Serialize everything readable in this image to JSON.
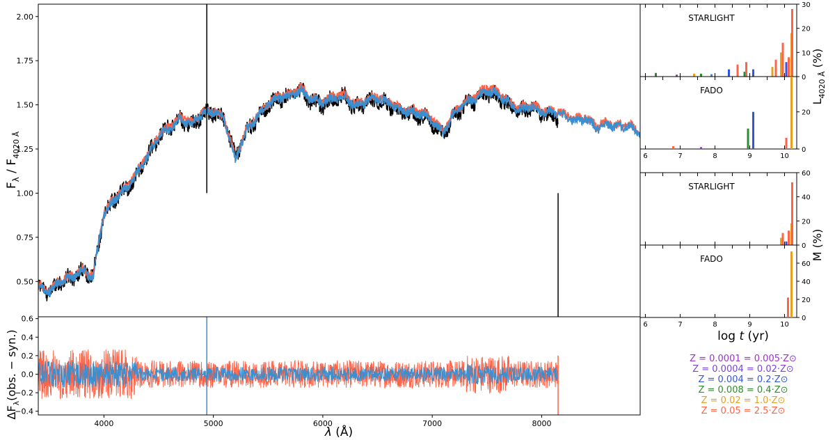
{
  "chart_data": [
    {
      "type": "line",
      "panel": "spectrum",
      "ylabel_main": "F",
      "ylabel_sub_lambda": "λ",
      "ylabel_sep": " / F",
      "ylabel_sub_ref": "4020 Å",
      "xlim": [
        3400,
        8900
      ],
      "ylim": [
        0.3,
        2.07
      ],
      "yticks": [
        "0.50",
        "0.75",
        "1.00",
        "1.25",
        "1.50",
        "1.75",
        "2.00"
      ],
      "ytick_values": [
        0.5,
        0.75,
        1.0,
        1.25,
        1.5,
        1.75,
        2.0
      ],
      "series": [
        {
          "role": "observed",
          "color": "#000000",
          "x": [
            3400,
            3500,
            3600,
            3700,
            3800,
            3900,
            3950,
            4000,
            4100,
            4200,
            4300,
            4400,
            4500,
            4600,
            4700,
            4800,
            4900,
            5000,
            5100,
            5200,
            5300,
            5400,
            5500,
            5600,
            5700,
            5800,
            5900,
            6000,
            6100,
            6200,
            6300,
            6400,
            6500,
            6600,
            6700,
            6800,
            6900,
            7000,
            7100,
            7200,
            7300,
            7400,
            7500,
            7600,
            7700,
            7800,
            7900,
            8000,
            8100,
            8150
          ],
          "y": [
            0.47,
            0.44,
            0.5,
            0.52,
            0.56,
            0.53,
            0.7,
            0.88,
            0.97,
            1.02,
            1.1,
            1.21,
            1.32,
            1.38,
            1.42,
            1.38,
            1.45,
            1.46,
            1.42,
            1.2,
            1.35,
            1.42,
            1.5,
            1.54,
            1.55,
            1.58,
            1.52,
            1.5,
            1.53,
            1.55,
            1.48,
            1.52,
            1.53,
            1.5,
            1.46,
            1.45,
            1.44,
            1.4,
            1.33,
            1.44,
            1.5,
            1.53,
            1.57,
            1.55,
            1.5,
            1.46,
            1.48,
            1.45,
            1.44,
            1.43
          ]
        },
        {
          "role": "STARLIGHT synthetic",
          "color": "#ff6347",
          "x": [
            3400,
            3500,
            3600,
            3700,
            3800,
            3900,
            3950,
            4000,
            4100,
            4200,
            4300,
            4400,
            4500,
            4600,
            4700,
            4800,
            4900,
            5000,
            5100,
            5200,
            5300,
            5400,
            5500,
            5600,
            5700,
            5800,
            5900,
            6000,
            6100,
            6200,
            6300,
            6400,
            6500,
            6600,
            6700,
            6800,
            6900,
            7000,
            7100,
            7200,
            7300,
            7400,
            7500,
            7600,
            7700,
            7800,
            7900,
            8000,
            8100,
            8200,
            8300,
            8400,
            8500,
            8600,
            8700,
            8800,
            8900
          ],
          "y": [
            0.48,
            0.45,
            0.51,
            0.53,
            0.57,
            0.53,
            0.72,
            0.89,
            0.98,
            1.03,
            1.12,
            1.22,
            1.33,
            1.38,
            1.43,
            1.4,
            1.46,
            1.47,
            1.43,
            1.2,
            1.36,
            1.44,
            1.51,
            1.55,
            1.56,
            1.6,
            1.54,
            1.52,
            1.55,
            1.56,
            1.5,
            1.53,
            1.55,
            1.52,
            1.48,
            1.47,
            1.46,
            1.42,
            1.35,
            1.46,
            1.52,
            1.55,
            1.6,
            1.57,
            1.52,
            1.48,
            1.5,
            1.47,
            1.47,
            1.45,
            1.42,
            1.43,
            1.38,
            1.4,
            1.38,
            1.39,
            1.34
          ]
        },
        {
          "role": "FADO synthetic",
          "color": "#3a8fd0",
          "x": [
            3400,
            3500,
            3600,
            3700,
            3800,
            3900,
            3950,
            4000,
            4100,
            4200,
            4300,
            4400,
            4500,
            4600,
            4700,
            4800,
            4900,
            5000,
            5100,
            5200,
            5300,
            5400,
            5500,
            5600,
            5700,
            5800,
            5900,
            6000,
            6100,
            6200,
            6300,
            6400,
            6500,
            6600,
            6700,
            6800,
            6900,
            7000,
            7100,
            7200,
            7300,
            7400,
            7500,
            7600,
            7700,
            7800,
            7900,
            8000,
            8100,
            8200,
            8300,
            8400,
            8500,
            8600,
            8700,
            8800,
            8900
          ],
          "y": [
            0.47,
            0.44,
            0.5,
            0.52,
            0.56,
            0.52,
            0.71,
            0.88,
            0.97,
            1.02,
            1.11,
            1.21,
            1.32,
            1.37,
            1.42,
            1.39,
            1.45,
            1.46,
            1.42,
            1.19,
            1.35,
            1.43,
            1.5,
            1.54,
            1.55,
            1.58,
            1.53,
            1.51,
            1.54,
            1.55,
            1.49,
            1.52,
            1.54,
            1.51,
            1.47,
            1.46,
            1.45,
            1.41,
            1.34,
            1.45,
            1.51,
            1.54,
            1.58,
            1.56,
            1.51,
            1.47,
            1.49,
            1.46,
            1.46,
            1.44,
            1.41,
            1.42,
            1.37,
            1.39,
            1.37,
            1.38,
            1.33
          ]
        }
      ]
    },
    {
      "type": "line",
      "panel": "residuals",
      "ylabel_main": "ΔF",
      "ylabel_sub": "λ",
      "ylabel_rest": "(obs. − syn.)",
      "xlabel_main": "λ",
      "xlabel_rest": " (Å)",
      "xlim": [
        3400,
        8900
      ],
      "ylim": [
        -0.44,
        0.62
      ],
      "xticks": [
        "4000",
        "5000",
        "6000",
        "7000",
        "8000"
      ],
      "xtick_values": [
        4000,
        5000,
        6000,
        7000,
        8000
      ],
      "yticks": [
        "−0.4",
        "−0.2",
        "0.0",
        "0.2",
        "0.4",
        "0.6"
      ],
      "ytick_values": [
        -0.4,
        -0.2,
        0.0,
        0.2,
        0.4,
        0.6
      ],
      "series": [
        {
          "role": "STARLIGHT residual",
          "color": "#ff6347",
          "amplitude": 0.15
        },
        {
          "role": "FADO residual",
          "color": "#3a8fd0",
          "amplitude": 0.08
        }
      ],
      "x_end": 8150
    },
    {
      "type": "bar",
      "panel": "light-starlight",
      "title": "STARLIGHT",
      "ylim": [
        0,
        30
      ],
      "yticks": [
        "0",
        "10",
        "20",
        "30"
      ],
      "ytick_values": [
        0,
        10,
        20,
        30
      ],
      "bars": [
        {
          "logt": 6.3,
          "color": "#2e8b2e",
          "value": 1.5
        },
        {
          "logt": 6.9,
          "color": "#9933cc",
          "value": 0.8
        },
        {
          "logt": 7.4,
          "color": "#e8a020",
          "value": 1.2
        },
        {
          "logt": 7.6,
          "color": "#2e8b2e",
          "value": 1.2
        },
        {
          "logt": 7.9,
          "color": "#3a8fd0",
          "value": 1.0
        },
        {
          "logt": 8.4,
          "color": "#3355dd",
          "value": 3.0
        },
        {
          "logt": 8.65,
          "color": "#ff6347",
          "value": 5.0
        },
        {
          "logt": 8.85,
          "color": "#2e8b2e",
          "value": 2.0
        },
        {
          "logt": 8.9,
          "color": "#ff6347",
          "value": 6.0
        },
        {
          "logt": 9.1,
          "color": "#3355dd",
          "value": 3.0
        },
        {
          "logt": 9.65,
          "color": "#e8a020",
          "value": 4.0
        },
        {
          "logt": 9.75,
          "color": "#ff6347",
          "value": 7.0
        },
        {
          "logt": 9.9,
          "color": "#e8a020",
          "value": 10.0
        },
        {
          "logt": 9.95,
          "color": "#ff6347",
          "value": 14.0
        },
        {
          "logt": 10.05,
          "color": "#3355dd",
          "value": 6.0
        },
        {
          "logt": 10.12,
          "color": "#ff6347",
          "value": 8.0
        },
        {
          "logt": 10.2,
          "color": "#e8a020",
          "value": 18.0
        },
        {
          "logt": 10.22,
          "color": "#ff6347",
          "value": 28.0
        }
      ]
    },
    {
      "type": "bar",
      "panel": "light-fado",
      "title": "FADO",
      "ylim": [
        0,
        39
      ],
      "yticks": [
        "0",
        "20"
      ],
      "ytick_values": [
        0,
        20
      ],
      "bars": [
        {
          "logt": 6.8,
          "color": "#ff6347",
          "value": 1.5
        },
        {
          "logt": 7.6,
          "color": "#9933cc",
          "value": 1.0
        },
        {
          "logt": 8.95,
          "color": "#2e8b2e",
          "value": 11.0
        },
        {
          "logt": 9.1,
          "color": "#3355dd",
          "value": 20.0
        },
        {
          "logt": 10.05,
          "color": "#ff6347",
          "value": 6.0
        },
        {
          "logt": 10.2,
          "color": "#e8a020",
          "value": 39.0
        }
      ]
    },
    {
      "type": "bar",
      "panel": "mass-starlight",
      "title": "STARLIGHT",
      "ylim": [
        0,
        60
      ],
      "yticks": [
        "0",
        "20",
        "40",
        "60"
      ],
      "ytick_values": [
        0,
        20,
        40,
        60
      ],
      "bars": [
        {
          "logt": 9.9,
          "color": "#e8a020",
          "value": 6.0
        },
        {
          "logt": 9.95,
          "color": "#ff6347",
          "value": 10.0
        },
        {
          "logt": 10.05,
          "color": "#3355dd",
          "value": 3.0
        },
        {
          "logt": 10.12,
          "color": "#ff6347",
          "value": 12.0
        },
        {
          "logt": 10.2,
          "color": "#e8a020",
          "value": 18.0
        },
        {
          "logt": 10.22,
          "color": "#ff6347",
          "value": 52.0
        }
      ]
    },
    {
      "type": "bar",
      "panel": "mass-fado",
      "title": "FADO",
      "ylim": [
        0,
        80
      ],
      "yticks": [
        "0",
        "20",
        "40",
        "60"
      ],
      "ytick_values": [
        0,
        20,
        40,
        60
      ],
      "bars": [
        {
          "logt": 10.1,
          "color": "#ff6347",
          "value": 22.0
        },
        {
          "logt": 10.2,
          "color": "#e8a020",
          "value": 73.0
        }
      ]
    }
  ],
  "age_axis": {
    "xlim": [
      5.85,
      10.35
    ],
    "xticks": [
      "6",
      "7",
      "8",
      "9",
      "10"
    ],
    "xtick_values": [
      6,
      7,
      8,
      9,
      10
    ],
    "xlabel_pre": "log ",
    "xlabel_t": "t",
    "xlabel_post": " (yr)",
    "ylabel_light_main": "L",
    "ylabel_light_sub": "4020 Å",
    "ylabel_light_rest": " (%)",
    "ylabel_mass": "M (%)"
  },
  "legend": [
    {
      "text": "Z = 0.0001 = 0.005·Z⊙",
      "color": "#9933cc"
    },
    {
      "text": "Z = 0.0004 = 0.02·Z⊙",
      "color": "#7744dd"
    },
    {
      "text": "Z = 0.004 = 0.2·Z⊙",
      "color": "#3355dd"
    },
    {
      "text": "Z = 0.008 = 0.4·Z⊙",
      "color": "#2e8b2e"
    },
    {
      "text": "Z = 0.02 = 1.0·Z⊙",
      "color": "#e8a020"
    },
    {
      "text": "Z = 0.05 = 2.5·Z⊙",
      "color": "#ff6347"
    }
  ]
}
